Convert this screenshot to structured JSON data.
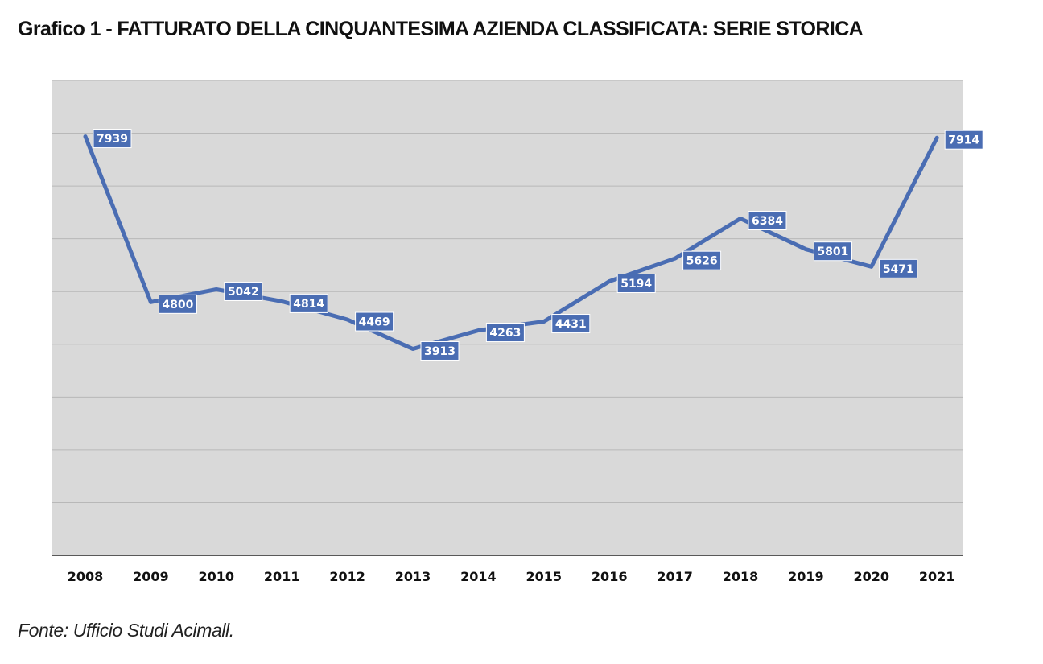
{
  "title": "Grafico 1 - FATTURATO DELLA CINQUANTESIMA AZIENDA CLASSIFICATA: SERIE STORICA",
  "source": "Fonte: Ufficio Studi Acimall.",
  "colors": {
    "line": "#4a6db3",
    "label_bg": "#4a6db3",
    "label_text": "#ffffff",
    "plot_bg": "#d9d9d9",
    "gridline": "#b8b8b8",
    "axis": "#222222"
  },
  "chart_data": {
    "type": "line",
    "categories": [
      "2008",
      "2009",
      "2010",
      "2011",
      "2012",
      "2013",
      "2014",
      "2015",
      "2016",
      "2017",
      "2018",
      "2019",
      "2020",
      "2021"
    ],
    "series": [
      {
        "values": [
          7939,
          4800,
          5042,
          4814,
          4469,
          3913,
          4263,
          4431,
          5194,
          5626,
          6384,
          5801,
          5471,
          7914
        ]
      }
    ],
    "ylim": [
      0,
      9000
    ],
    "y_gridline_step": 1000,
    "y_tick_labels_shown": false,
    "data_labels": true,
    "grid": true,
    "legend": false
  }
}
